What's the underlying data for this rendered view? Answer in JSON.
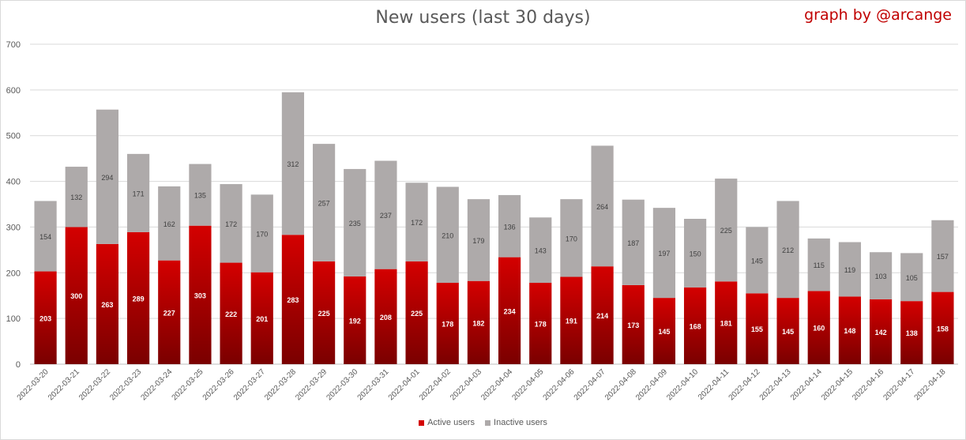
{
  "header": {
    "title": "New users (last 30 days)",
    "credit": "graph by @arcange"
  },
  "legend": {
    "active_label": "Active users",
    "inactive_label": "Inactive users"
  },
  "colors": {
    "active_top": "#d40000",
    "active_bottom": "#7a0000",
    "inactive": "#aeaaaa",
    "grid": "#d9d9d9",
    "axis_text": "#595959"
  },
  "chart_data": {
    "type": "bar",
    "stacked": true,
    "title": "New users (last 30 days)",
    "ylim": [
      0,
      700
    ],
    "yticks": [
      0,
      100,
      200,
      300,
      400,
      500,
      600,
      700
    ],
    "grid": true,
    "legend_position": "bottom",
    "categories": [
      "2022-03-20",
      "2022-03-21",
      "2022-03-22",
      "2022-03-23",
      "2022-03-24",
      "2022-03-25",
      "2022-03-26",
      "2022-03-27",
      "2022-03-28",
      "2022-03-29",
      "2022-03-30",
      "2022-03-31",
      "2022-04-01",
      "2022-04-02",
      "2022-04-03",
      "2022-04-04",
      "2022-04-05",
      "2022-04-06",
      "2022-04-07",
      "2022-04-08",
      "2022-04-09",
      "2022-04-10",
      "2022-04-11",
      "2022-04-12",
      "2022-04-13",
      "2022-04-14",
      "2022-04-15",
      "2022-04-16",
      "2022-04-17",
      "2022-04-18"
    ],
    "series": [
      {
        "name": "Active users",
        "values": [
          203,
          300,
          263,
          289,
          227,
          303,
          222,
          201,
          283,
          225,
          192,
          208,
          225,
          178,
          182,
          234,
          178,
          191,
          214,
          173,
          145,
          168,
          181,
          155,
          145,
          160,
          148,
          142,
          138,
          158
        ]
      },
      {
        "name": "Inactive users",
        "values": [
          154,
          132,
          294,
          171,
          162,
          135,
          172,
          170,
          312,
          257,
          235,
          237,
          172,
          210,
          179,
          136,
          143,
          170,
          264,
          187,
          197,
          150,
          225,
          145,
          212,
          115,
          119,
          103,
          105,
          157
        ]
      }
    ]
  }
}
